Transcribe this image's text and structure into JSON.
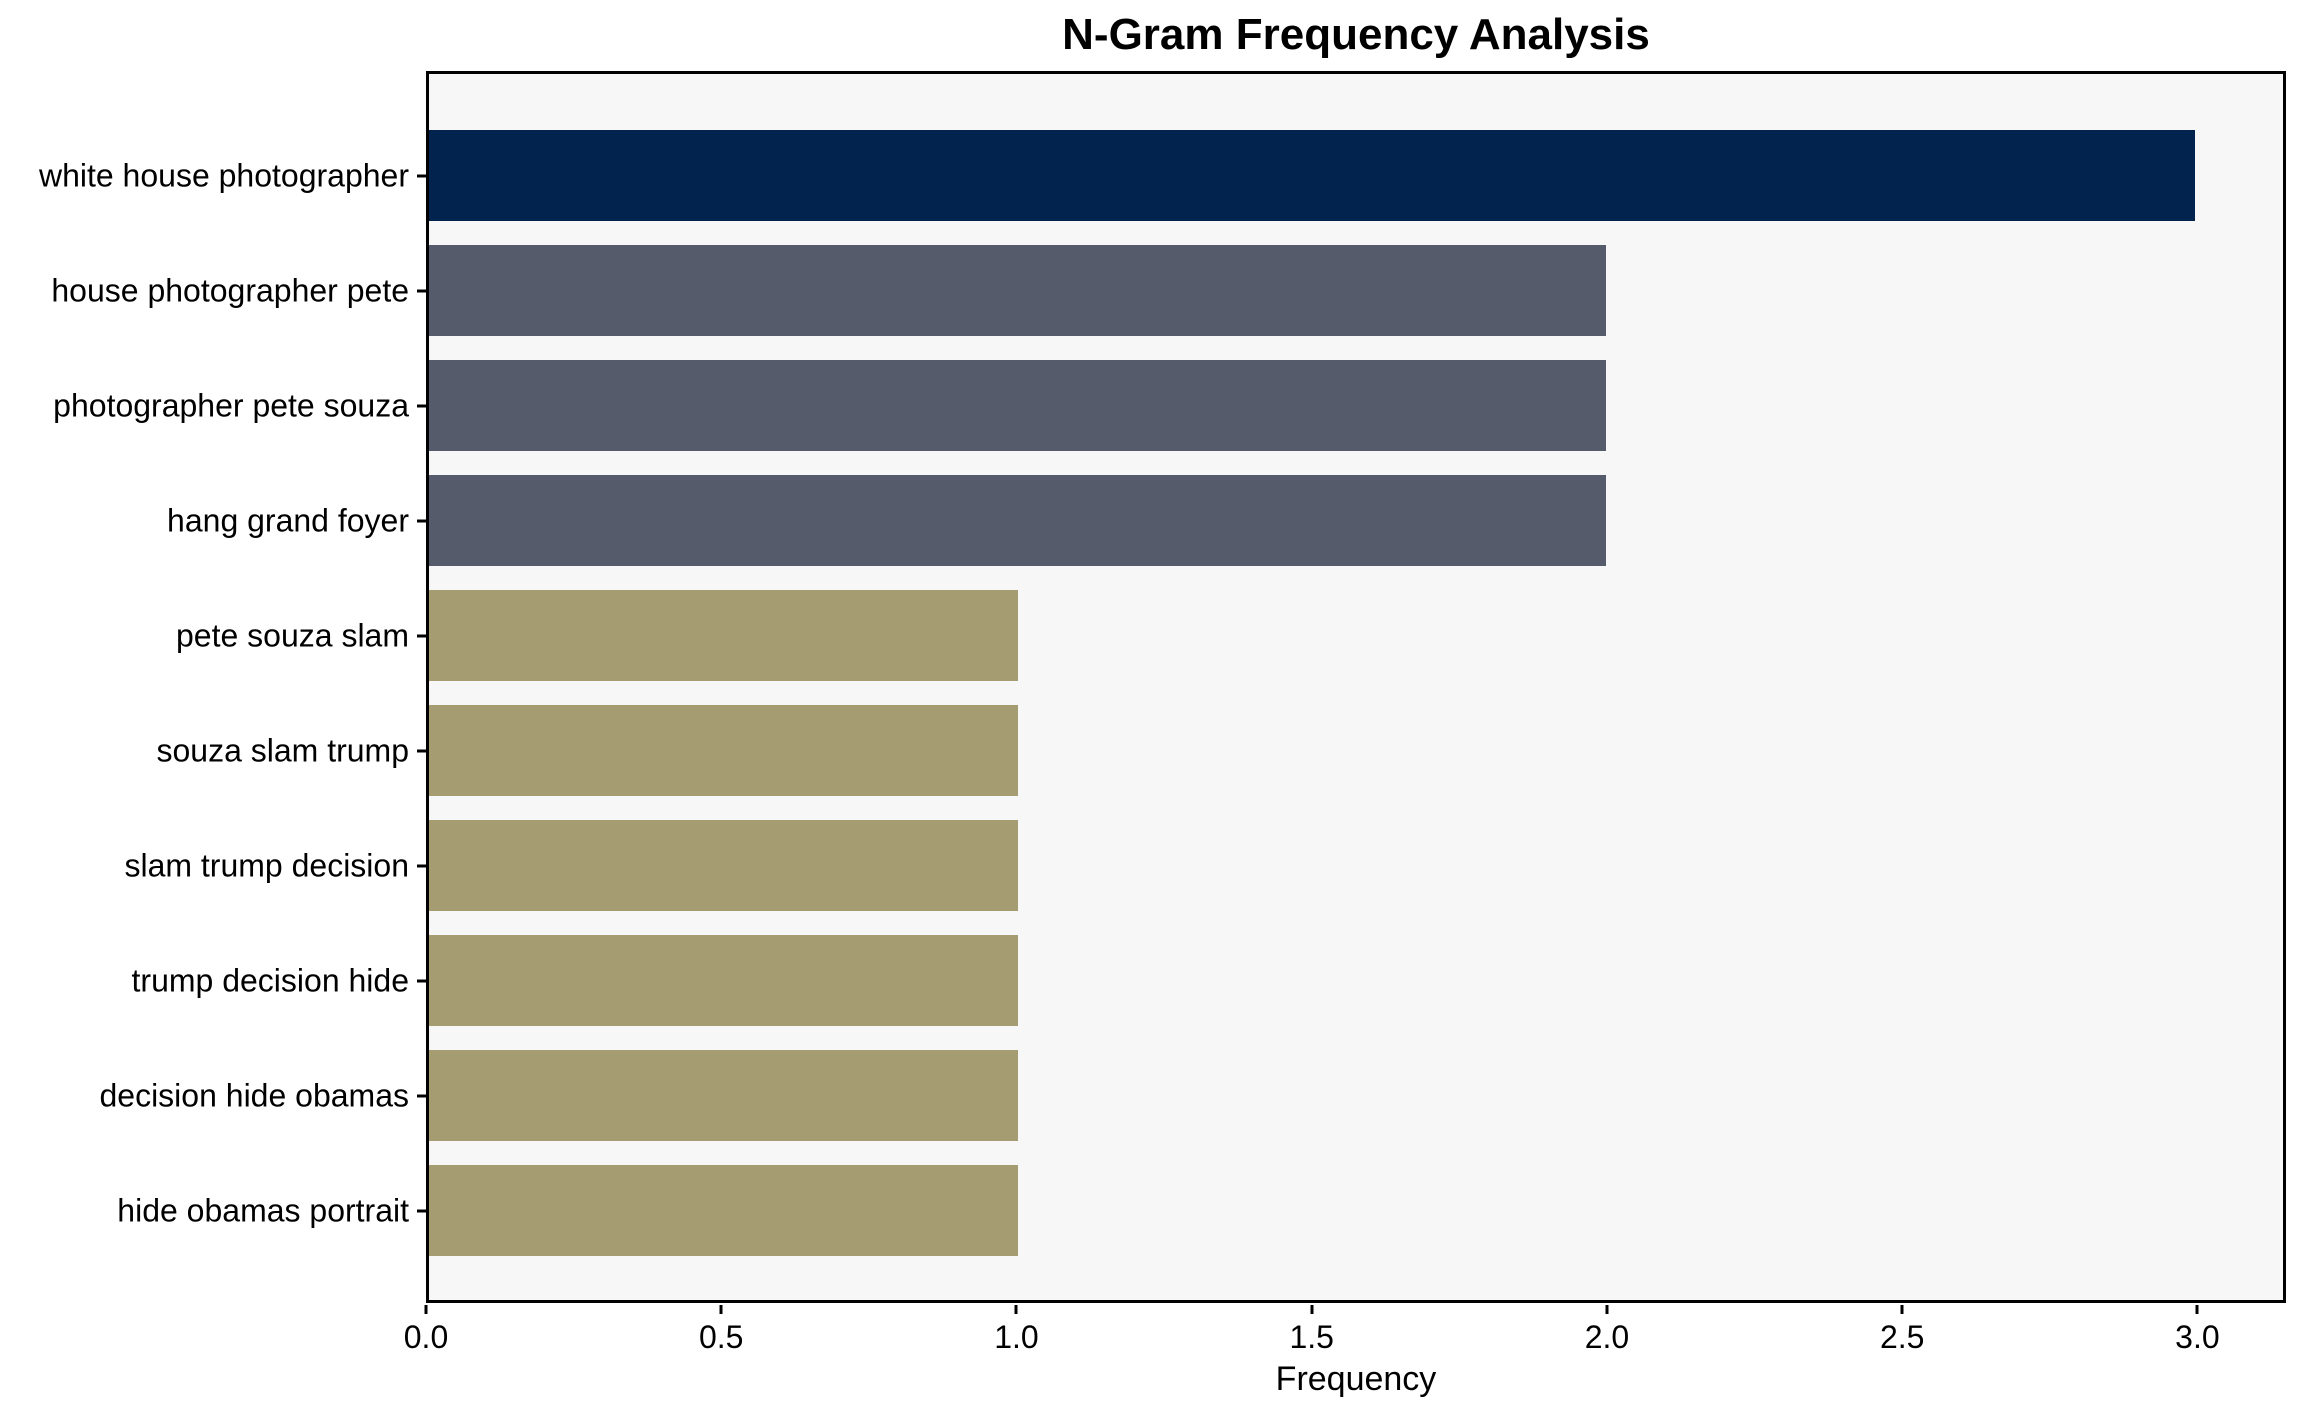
{
  "chart_data": {
    "type": "bar",
    "orientation": "horizontal",
    "title": "N-Gram Frequency Analysis",
    "xlabel": "Frequency",
    "ylabel": "",
    "categories": [
      "white house photographer",
      "house photographer pete",
      "photographer pete souza",
      "hang grand foyer",
      "pete souza slam",
      "souza slam trump",
      "slam trump decision",
      "trump decision hide",
      "decision hide obamas",
      "hide obamas portrait"
    ],
    "values": [
      3,
      2,
      2,
      2,
      1,
      1,
      1,
      1,
      1,
      1
    ],
    "bar_colors": [
      "#02234d",
      "#565b6b",
      "#565b6b",
      "#565b6b",
      "#a69c72",
      "#a69c72",
      "#a69c72",
      "#a69c72",
      "#a69c72",
      "#a69c72"
    ],
    "xlim": [
      0,
      3.15
    ],
    "xtick_labels": [
      "0.0",
      "0.5",
      "1.0",
      "1.5",
      "2.0",
      "2.5",
      "3.0"
    ],
    "xtick_values": [
      0,
      0.5,
      1.0,
      1.5,
      2.0,
      2.5,
      3.0
    ],
    "grid": false,
    "legend_position": "none",
    "colors": {
      "plot_background": "#f7f7f8",
      "figure_background": "#ffffff",
      "spine": "#000000",
      "text": "#000000",
      "navy": "#02234d",
      "slate": "#565b6b",
      "khaki": "#a69c72"
    }
  }
}
